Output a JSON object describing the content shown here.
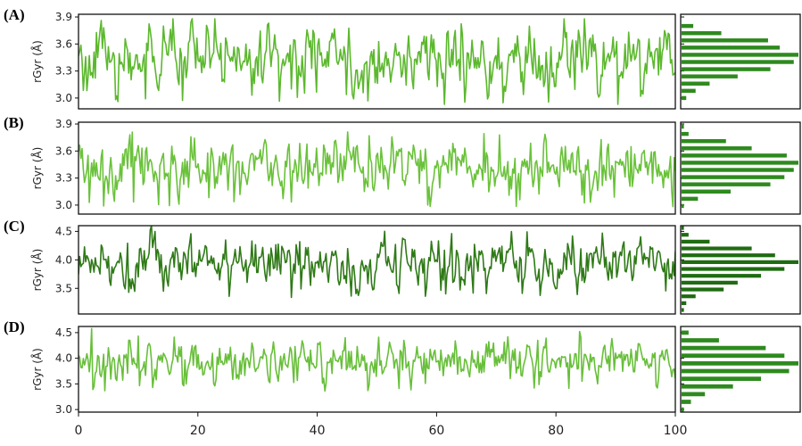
{
  "chart_data": [
    {
      "panel_label": "(A)",
      "type": "line",
      "ylabel": "rGyr (Å)",
      "xlim": [
        0,
        100
      ],
      "ylim": [
        2.88,
        3.93
      ],
      "yticks": [
        3.0,
        3.3,
        3.6,
        3.9
      ],
      "ytick_labels": [
        "3.0",
        "3.3",
        "3.6",
        "3.9"
      ],
      "line_color": "#5cb82e",
      "series_stats": {
        "mean": 3.43,
        "sd": 0.17,
        "min": 2.93,
        "max": 3.88,
        "points": 500
      },
      "histogram": {
        "type": "bar",
        "orientation": "horizontal",
        "bin_centers": [
          3.0,
          3.08,
          3.16,
          3.24,
          3.32,
          3.4,
          3.48,
          3.56,
          3.64,
          3.72,
          3.8
        ],
        "counts": [
          2,
          6,
          12,
          24,
          38,
          48,
          50,
          42,
          37,
          17,
          5
        ],
        "bar_color": "#2e8a1e"
      }
    },
    {
      "panel_label": "(B)",
      "type": "line",
      "ylabel": "rGyr (Å)",
      "xlim": [
        0,
        100
      ],
      "ylim": [
        2.9,
        3.92
      ],
      "yticks": [
        3.0,
        3.3,
        3.6,
        3.9
      ],
      "ytick_labels": [
        "3.0",
        "3.3",
        "3.6",
        "3.9"
      ],
      "line_color": "#6ac23a",
      "series_stats": {
        "mean": 3.45,
        "sd": 0.16,
        "min": 2.93,
        "max": 3.88,
        "points": 500
      },
      "histogram": {
        "type": "bar",
        "orientation": "horizontal",
        "bin_centers": [
          2.99,
          3.07,
          3.15,
          3.23,
          3.31,
          3.39,
          3.47,
          3.55,
          3.63,
          3.71,
          3.79,
          3.87
        ],
        "counts": [
          1,
          7,
          21,
          38,
          44,
          48,
          50,
          45,
          30,
          19,
          3,
          1
        ],
        "bar_color": "#2e8a1e"
      }
    },
    {
      "panel_label": "(C)",
      "type": "line",
      "ylabel": "rGyr (Å)",
      "xlim": [
        0,
        100
      ],
      "ylim": [
        3.05,
        4.6
      ],
      "yticks": [
        3.5,
        4.0,
        4.5
      ],
      "ytick_labels": [
        "3.5",
        "4.0",
        "4.5"
      ],
      "line_color": "#2f7a17",
      "series_stats": {
        "mean": 3.98,
        "sd": 0.22,
        "min": 3.1,
        "max": 4.6,
        "points": 500
      },
      "histogram": {
        "type": "bar",
        "orientation": "horizontal",
        "bin_centers": [
          3.12,
          3.24,
          3.36,
          3.48,
          3.6,
          3.72,
          3.84,
          3.96,
          4.08,
          4.2,
          4.32,
          4.44,
          4.56
        ],
        "counts": [
          1,
          2,
          6,
          18,
          24,
          34,
          44,
          50,
          40,
          30,
          12,
          3,
          1
        ],
        "bar_color": "#1f6b12"
      }
    },
    {
      "panel_label": "(D)",
      "type": "line",
      "ylabel": "rGyr (Å)",
      "xlim": [
        0,
        100
      ],
      "ylim": [
        2.95,
        4.62
      ],
      "yticks": [
        3.0,
        3.5,
        4.0,
        4.5
      ],
      "ytick_labels": [
        "3.0",
        "3.5",
        "4.0",
        "4.5"
      ],
      "line_color": "#68bf3a",
      "series_stats": {
        "mean": 3.96,
        "sd": 0.2,
        "min": 3.05,
        "max": 4.58,
        "points": 500
      },
      "histogram": {
        "type": "bar",
        "orientation": "horizontal",
        "bin_centers": [
          3.0,
          3.15,
          3.3,
          3.45,
          3.6,
          3.75,
          3.9,
          4.05,
          4.2,
          4.35,
          4.5
        ],
        "counts": [
          1,
          4,
          10,
          22,
          34,
          46,
          50,
          44,
          36,
          16,
          3
        ],
        "bar_color": "#2e8a1e"
      }
    }
  ],
  "shared_x_axis": {
    "ticks": [
      0,
      20,
      40,
      60,
      80,
      100
    ],
    "tick_labels": [
      "0",
      "20",
      "40",
      "60",
      "80",
      "100"
    ],
    "xlabel": ""
  }
}
